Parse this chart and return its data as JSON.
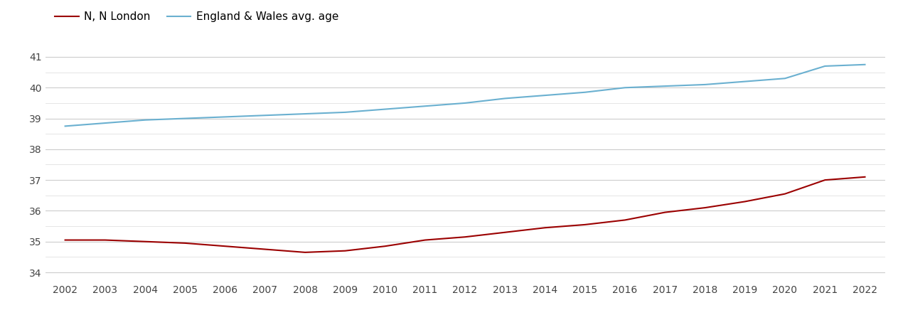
{
  "years": [
    2002,
    2003,
    2004,
    2005,
    2006,
    2007,
    2008,
    2009,
    2010,
    2011,
    2012,
    2013,
    2014,
    2015,
    2016,
    2017,
    2018,
    2019,
    2020,
    2021,
    2022
  ],
  "n_london": [
    35.05,
    35.05,
    35.0,
    34.95,
    34.85,
    34.75,
    34.65,
    34.7,
    34.85,
    35.05,
    35.15,
    35.3,
    35.45,
    35.55,
    35.7,
    35.95,
    36.1,
    36.3,
    36.55,
    37.0,
    37.1
  ],
  "eng_wales": [
    38.75,
    38.85,
    38.95,
    39.0,
    39.05,
    39.1,
    39.15,
    39.2,
    39.3,
    39.4,
    39.5,
    39.65,
    39.75,
    39.85,
    40.0,
    40.05,
    40.1,
    40.2,
    40.3,
    40.7,
    40.75
  ],
  "n_london_color": "#9b0000",
  "eng_wales_color": "#6ab0d0",
  "legend_label_london": "N, N London",
  "legend_label_eng": "England & Wales avg. age",
  "ylim": [
    33.7,
    41.6
  ],
  "yticks": [
    34,
    35,
    36,
    37,
    38,
    39,
    40,
    41
  ],
  "yticks_minor": [
    34.5,
    35.5,
    36.5,
    37.5,
    38.5,
    39.5,
    40.5
  ],
  "background_color": "#ffffff",
  "grid_color_major": "#cccccc",
  "grid_color_minor": "#e0e0e0",
  "line_width": 1.5,
  "font_size_ticks": 10,
  "font_size_legend": 11
}
